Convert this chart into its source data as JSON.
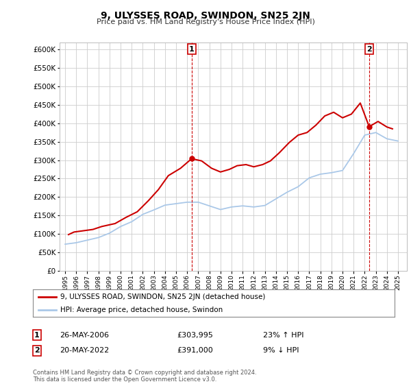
{
  "title": "9, ULYSSES ROAD, SWINDON, SN25 2JN",
  "subtitle": "Price paid vs. HM Land Registry's House Price Index (HPI)",
  "property_label": "9, ULYSSES ROAD, SWINDON, SN25 2JN (detached house)",
  "hpi_label": "HPI: Average price, detached house, Swindon",
  "property_color": "#cc0000",
  "hpi_color": "#aac8e8",
  "marker1_date": "26-MAY-2006",
  "marker1_price": 303995,
  "marker1_hpi": "23% ↑ HPI",
  "marker2_date": "20-MAY-2022",
  "marker2_price": 391000,
  "marker2_hpi": "9% ↓ HPI",
  "vline1_x": 2006.4,
  "vline2_x": 2022.4,
  "ylim_min": 0,
  "ylim_max": 620000,
  "xlim_min": 1994.5,
  "xlim_max": 2025.8,
  "footer": "Contains HM Land Registry data © Crown copyright and database right 2024.\nThis data is licensed under the Open Government Licence v3.0.",
  "background_color": "#ffffff",
  "grid_color": "#cccccc",
  "years": [
    1995,
    1996,
    1997,
    1998,
    1999,
    2000,
    2001,
    2002,
    2003,
    2004,
    2005,
    2006,
    2007,
    2008,
    2009,
    2010,
    2011,
    2012,
    2013,
    2014,
    2015,
    2016,
    2017,
    2018,
    2019,
    2020,
    2021,
    2022,
    2023,
    2024,
    2025
  ],
  "hpi_values": [
    72000,
    76000,
    83000,
    90000,
    102000,
    120000,
    133000,
    153000,
    165000,
    178000,
    182000,
    186000,
    186000,
    176000,
    166000,
    173000,
    176000,
    173000,
    177000,
    195000,
    213000,
    228000,
    252000,
    262000,
    266000,
    272000,
    318000,
    368000,
    375000,
    358000,
    352000
  ],
  "property_values_x": [
    1995.3,
    1995.8,
    1997.5,
    1998.3,
    1999.5,
    2000.5,
    2001.5,
    2002.5,
    2003.4,
    2004.3,
    2005.4,
    2006.4,
    2007.3,
    2008.2,
    2009.0,
    2009.8,
    2010.5,
    2011.3,
    2012.0,
    2012.8,
    2013.5,
    2014.3,
    2015.2,
    2016.0,
    2016.8,
    2017.6,
    2018.4,
    2019.2,
    2020.0,
    2020.8,
    2021.6,
    2022.4,
    2023.2,
    2024.0,
    2024.5
  ],
  "property_values_y": [
    98000,
    105000,
    112000,
    120000,
    128000,
    145000,
    160000,
    190000,
    220000,
    258000,
    278000,
    303995,
    298000,
    278000,
    268000,
    275000,
    285000,
    288000,
    282000,
    288000,
    298000,
    320000,
    348000,
    368000,
    375000,
    395000,
    420000,
    430000,
    415000,
    425000,
    455000,
    391000,
    405000,
    390000,
    385000
  ]
}
